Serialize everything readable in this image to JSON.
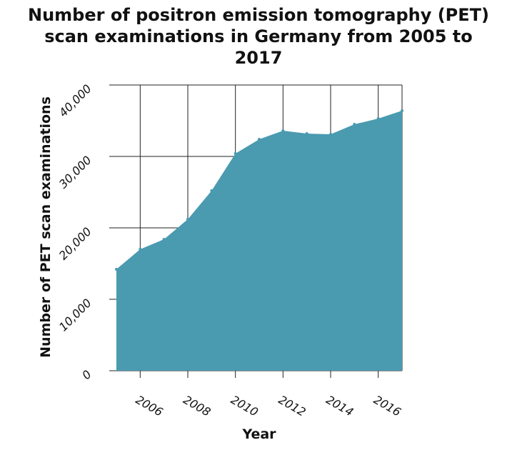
{
  "chart_data": {
    "type": "area",
    "title_lines": [
      "Number of positron emission tomography (PET)",
      "scan examinations in Germany from 2005 to",
      "2017"
    ],
    "xlabel": "Year",
    "ylabel": "Number of PET scan examinations",
    "x": [
      2005,
      2006,
      2007,
      2008,
      2009,
      2010,
      2011,
      2012,
      2013,
      2014,
      2015,
      2016,
      2017
    ],
    "values": [
      14200,
      17000,
      18400,
      21200,
      25200,
      30400,
      32400,
      33600,
      33200,
      33100,
      34500,
      35300,
      36400
    ],
    "xlim": [
      2005,
      2017
    ],
    "ylim": [
      0,
      40000
    ],
    "x_ticks": [
      "2006",
      "2008",
      "2010",
      "2012",
      "2014",
      "2016"
    ],
    "y_ticks": [
      "0",
      "10,000",
      "20,000",
      "30,000",
      "40,000"
    ],
    "grid": true,
    "fill_color": "#4a9ab0"
  }
}
